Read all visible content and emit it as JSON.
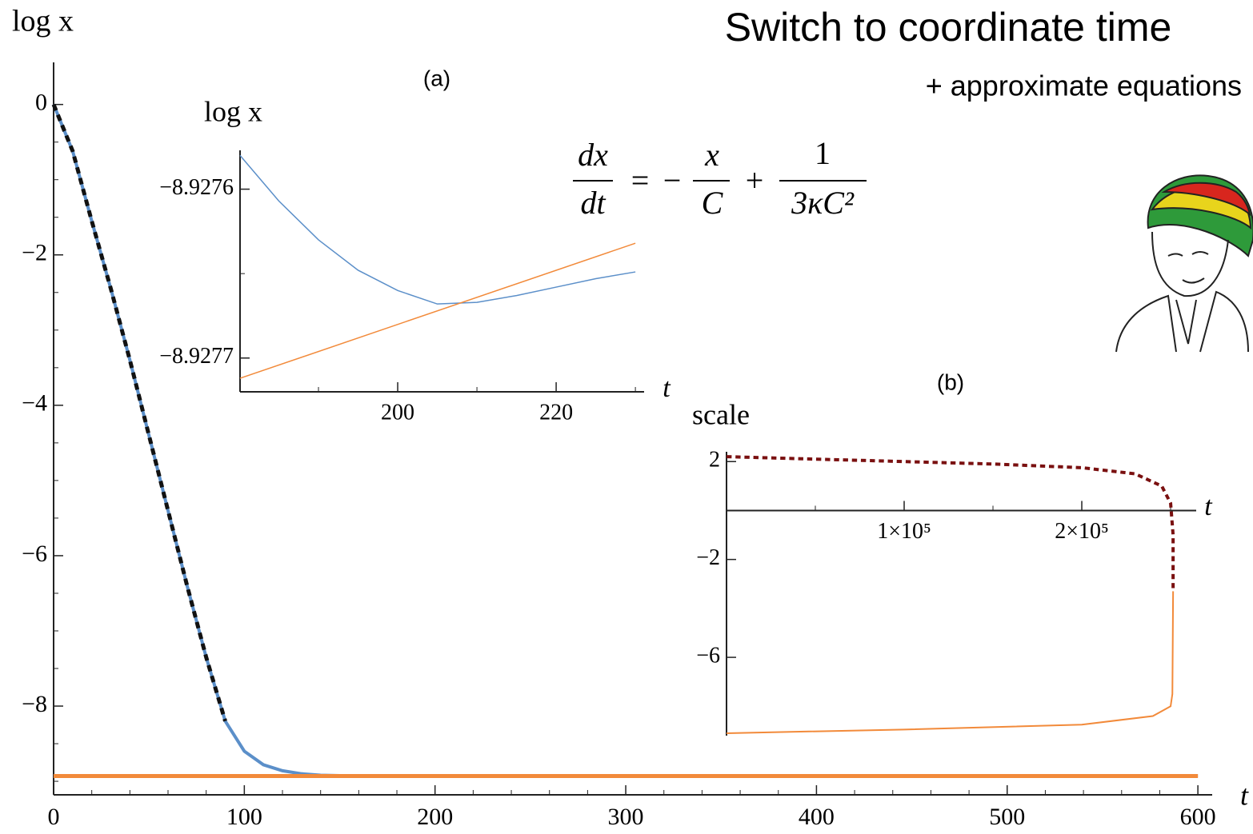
{
  "slide": {
    "title": "Switch to coordinate time",
    "subtitle": "+ approximate equations"
  },
  "equation": {
    "terms": [
      {
        "num": "dx",
        "den": "dt"
      },
      {
        "num": "x",
        "den": "C"
      },
      {
        "num": "1",
        "den": "3κC²"
      }
    ],
    "operators": [
      "=",
      "−",
      "+"
    ]
  },
  "chart_data": [
    {
      "type": "line",
      "ylabel": "log x",
      "xlabel": "t",
      "xlim": [
        0,
        607.5
      ],
      "ylim": [
        -9.18,
        0.56
      ],
      "xticks": [
        0,
        100,
        200,
        300,
        400,
        500,
        600
      ],
      "yticks": [
        0,
        {
          "value": -2,
          "label": "−2"
        },
        {
          "value": -4,
          "label": "−4"
        },
        {
          "value": -6,
          "label": "−6"
        },
        {
          "value": -8,
          "label": "−8"
        }
      ],
      "xminorticks": [
        20,
        40,
        60,
        80,
        120,
        140,
        160,
        180,
        220,
        240,
        260,
        280,
        320,
        340,
        360,
        380,
        420,
        440,
        460,
        480,
        520,
        540,
        560,
        580
      ],
      "yminorticks": [
        -0.5,
        -1,
        -1.5,
        -2.5,
        -3,
        -3.5,
        -4.5,
        -5,
        -5.5,
        -6.5,
        -7,
        -7.5,
        -8.5,
        -9
      ],
      "series": [
        {
          "color": "#5b8fc9",
          "width": 4,
          "dash": false,
          "x": [
            0,
            10,
            20,
            30,
            40,
            50,
            60,
            70,
            80,
            90,
            100,
            110,
            120,
            130,
            140,
            150,
            200,
            300,
            400,
            500,
            600
          ],
          "values": [
            0,
            -0.62,
            -1.55,
            -2.45,
            -3.4,
            -4.4,
            -5.4,
            -6.4,
            -7.35,
            -8.2,
            -8.6,
            -8.78,
            -8.86,
            -8.9,
            -8.92,
            -8.925,
            -8.928,
            -8.928,
            -8.928,
            -8.928,
            -8.928
          ]
        },
        {
          "color": "#f28a3a",
          "width": 5,
          "dash": false,
          "x": [
            0,
            600
          ],
          "values": [
            -8.93,
            -8.93
          ]
        },
        {
          "color": "#111111",
          "width": 5,
          "dash": true,
          "x": [
            0,
            10,
            20,
            30,
            40,
            50,
            60,
            70,
            80,
            90
          ],
          "values": [
            0,
            -0.62,
            -1.55,
            -2.45,
            -3.4,
            -4.4,
            -5.4,
            -6.4,
            -7.35,
            -8.2
          ]
        }
      ]
    },
    {
      "type": "line",
      "ylabel": "log x",
      "xlabel": "t",
      "annotation": "(a)",
      "xlim": [
        180.1,
        231.1
      ],
      "ylim": [
        -8.92772,
        -8.927577
      ],
      "xticks": [
        200,
        220
      ],
      "yticks": [
        {
          "value": -8.9276,
          "label": "−8.9276"
        },
        {
          "value": -8.9277,
          "label": "−8.9277"
        }
      ],
      "xminorticks": [
        190,
        210,
        230
      ],
      "yminorticks": [
        -8.92765
      ],
      "series": [
        {
          "color": "#5b8fc9",
          "width": 1.5,
          "dash": false,
          "x": [
            180.1,
            185,
            190,
            195,
            200,
            205,
            210,
            215,
            220,
            225,
            230
          ],
          "values": [
            -8.92758,
            -8.927607,
            -8.92763,
            -8.927648,
            -8.92766,
            -8.927668,
            -8.927667,
            -8.927663,
            -8.927658,
            -8.927653,
            -8.927649
          ]
        },
        {
          "color": "#f28a3a",
          "width": 1.5,
          "dash": false,
          "x": [
            180.1,
            230
          ],
          "values": [
            -8.927712,
            -8.927632
          ]
        }
      ]
    },
    {
      "type": "line",
      "ylabel": "scale",
      "xlabel": "t",
      "annotation": "(b)",
      "xaxis_at_zero": true,
      "xlim": [
        0,
        264400
      ],
      "ylim": [
        -9.2,
        2.4
      ],
      "xticks": [
        {
          "value": 100000,
          "label": "1×10⁵"
        },
        {
          "value": 200000,
          "label": "2×10⁵"
        }
      ],
      "yticks": [
        2,
        {
          "value": -2,
          "label": "−2"
        },
        {
          "value": -6,
          "label": "−6"
        }
      ],
      "xminorticks": [
        50000,
        150000,
        250000
      ],
      "yminorticks": [],
      "series": [
        {
          "color": "#7a1010",
          "width": 4,
          "dash": true,
          "x": [
            0,
            50000,
            100000,
            150000,
            200000,
            230000,
            245000,
            250000,
            251400,
            251400
          ],
          "values": [
            2.2,
            2.1,
            2.0,
            1.9,
            1.75,
            1.5,
            1.0,
            0.3,
            -1,
            -3.3
          ]
        },
        {
          "color": "#f28a3a",
          "width": 2,
          "dash": false,
          "x": [
            0,
            100000,
            200000,
            240000,
            250000,
            251000,
            251400
          ],
          "values": [
            -9.1,
            -8.95,
            -8.75,
            -8.4,
            -8.0,
            -7.5,
            -3.3
          ]
        }
      ]
    }
  ]
}
